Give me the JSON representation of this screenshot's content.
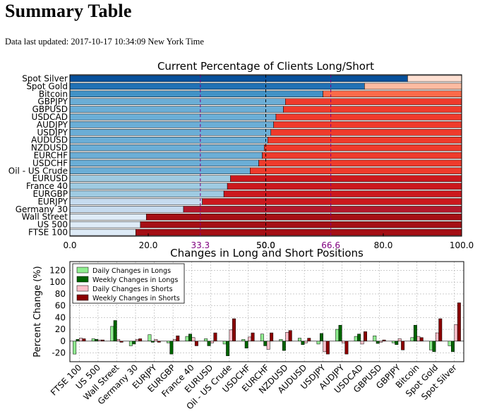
{
  "header": {
    "title": "Summary Table",
    "updated": "Data last updated: 2017-10-17 10:34:09 New York Time"
  },
  "chart_data": [
    {
      "type": "bar",
      "orientation": "horizontal",
      "stacked": true,
      "title": "Current Percentage of Clients Long/Short",
      "categories": [
        "Spot Silver",
        "Spot Gold",
        "Bitcoin",
        "GBPJPY",
        "GBPUSD",
        "USDCAD",
        "AUDJPY",
        "USDJPY",
        "AUDUSD",
        "NZDUSD",
        "EURCHF",
        "USDCHF",
        "Oil - US Crude",
        "EURUSD",
        "France 40",
        "EURGBP",
        "EURJPY",
        "Germany 30",
        "Wall Street",
        "US 500",
        "FTSE 100"
      ],
      "series": [
        {
          "values": [
            86.2,
            75.2,
            64.6,
            55.0,
            54.5,
            52.6,
            52.0,
            51.3,
            50.5,
            49.6,
            49.1,
            48.2,
            46.0,
            41.0,
            40.2,
            39.3,
            33.8,
            29.0,
            19.5,
            18.0,
            16.8
          ]
        },
        {
          "values": [
            13.8,
            24.8,
            35.4,
            45.0,
            45.5,
            47.4,
            48.0,
            48.7,
            49.5,
            50.4,
            50.9,
            51.8,
            54.0,
            59.0,
            59.8,
            60.7,
            66.2,
            71.0,
            80.5,
            82.0,
            83.2
          ]
        }
      ],
      "xlim": [
        0,
        100
      ],
      "xticks": [
        "0.0",
        "20.0",
        "50.0",
        "80.0",
        "100.0"
      ],
      "reference_lines": [
        {
          "value": 33.3,
          "label": "33.3",
          "color": "#800080"
        },
        {
          "value": 50.0,
          "label": "50.0",
          "color": "#000000"
        },
        {
          "value": 66.6,
          "label": "66.6",
          "color": "#800080"
        }
      ],
      "grid": true
    },
    {
      "type": "bar",
      "title": "Changes in Long and Short Positions",
      "ylabel": "Percent Change (%)",
      "categories": [
        "FTSE 100",
        "US 500",
        "Wall Street",
        "Germany 30",
        "EURJPY",
        "EURGBP",
        "France 40",
        "EURUSD",
        "Oil - US Crude",
        "USDCHF",
        "EURCHF",
        "NZDUSD",
        "AUDUSD",
        "USDJPY",
        "AUDJPY",
        "USDCAD",
        "GBPUSD",
        "GBPJPY",
        "Bitcoin",
        "Spot Gold",
        "Spot Silver"
      ],
      "series": [
        {
          "name": "Daily Changes in Longs",
          "values": [
            -22,
            4,
            25,
            -8,
            11,
            -3,
            8,
            4,
            -5,
            3,
            12,
            3,
            5,
            -5,
            20,
            8,
            9,
            -3,
            6,
            -15,
            -8
          ]
        },
        {
          "name": "Weekly Changes in Longs",
          "values": [
            3,
            3,
            35,
            -5,
            -2,
            -22,
            12,
            -8,
            -25,
            -12,
            -8,
            -16,
            -6,
            13,
            27,
            12,
            -4,
            -6,
            27,
            -18,
            -18
          ]
        },
        {
          "name": "Daily Changes in Shorts",
          "values": [
            5,
            2,
            3,
            3,
            3,
            3,
            6,
            -3,
            19,
            7,
            -14,
            15,
            -3,
            -18,
            -3,
            -5,
            -2,
            4,
            8,
            14,
            28
          ]
        },
        {
          "name": "Weekly Changes in Shorts",
          "values": [
            4,
            2,
            -2,
            4,
            -2,
            9,
            -8,
            14,
            38,
            14,
            14,
            18,
            5,
            -22,
            -22,
            16,
            2,
            -15,
            6,
            38,
            65
          ]
        }
      ],
      "ylim": [
        -35,
        135
      ],
      "yticks": [
        -20,
        0,
        20,
        40,
        60,
        80,
        100,
        120
      ],
      "grid": true,
      "legend_position": "top-left"
    }
  ]
}
